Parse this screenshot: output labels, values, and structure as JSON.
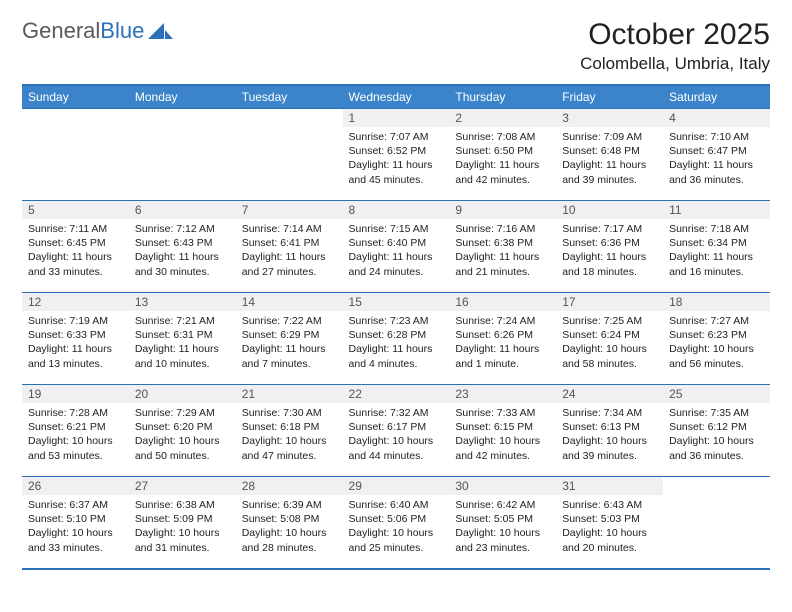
{
  "logo": {
    "text1": "General",
    "text2": "Blue"
  },
  "title": "October 2025",
  "location": "Colombella, Umbria, Italy",
  "colors": {
    "header_bg": "#3b84c9",
    "border": "#2d6fb8",
    "daynum_bg": "#eef0f2",
    "text": "#222222",
    "logo_gray": "#5a5a5a",
    "logo_blue": "#2d6fb8",
    "background": "#ffffff"
  },
  "weekdays": [
    "Sunday",
    "Monday",
    "Tuesday",
    "Wednesday",
    "Thursday",
    "Friday",
    "Saturday"
  ],
  "weeks": [
    [
      {
        "n": "",
        "sr": "",
        "ss": "",
        "dl": ""
      },
      {
        "n": "",
        "sr": "",
        "ss": "",
        "dl": ""
      },
      {
        "n": "",
        "sr": "",
        "ss": "",
        "dl": ""
      },
      {
        "n": "1",
        "sr": "Sunrise: 7:07 AM",
        "ss": "Sunset: 6:52 PM",
        "dl": "Daylight: 11 hours and 45 minutes."
      },
      {
        "n": "2",
        "sr": "Sunrise: 7:08 AM",
        "ss": "Sunset: 6:50 PM",
        "dl": "Daylight: 11 hours and 42 minutes."
      },
      {
        "n": "3",
        "sr": "Sunrise: 7:09 AM",
        "ss": "Sunset: 6:48 PM",
        "dl": "Daylight: 11 hours and 39 minutes."
      },
      {
        "n": "4",
        "sr": "Sunrise: 7:10 AM",
        "ss": "Sunset: 6:47 PM",
        "dl": "Daylight: 11 hours and 36 minutes."
      }
    ],
    [
      {
        "n": "5",
        "sr": "Sunrise: 7:11 AM",
        "ss": "Sunset: 6:45 PM",
        "dl": "Daylight: 11 hours and 33 minutes."
      },
      {
        "n": "6",
        "sr": "Sunrise: 7:12 AM",
        "ss": "Sunset: 6:43 PM",
        "dl": "Daylight: 11 hours and 30 minutes."
      },
      {
        "n": "7",
        "sr": "Sunrise: 7:14 AM",
        "ss": "Sunset: 6:41 PM",
        "dl": "Daylight: 11 hours and 27 minutes."
      },
      {
        "n": "8",
        "sr": "Sunrise: 7:15 AM",
        "ss": "Sunset: 6:40 PM",
        "dl": "Daylight: 11 hours and 24 minutes."
      },
      {
        "n": "9",
        "sr": "Sunrise: 7:16 AM",
        "ss": "Sunset: 6:38 PM",
        "dl": "Daylight: 11 hours and 21 minutes."
      },
      {
        "n": "10",
        "sr": "Sunrise: 7:17 AM",
        "ss": "Sunset: 6:36 PM",
        "dl": "Daylight: 11 hours and 18 minutes."
      },
      {
        "n": "11",
        "sr": "Sunrise: 7:18 AM",
        "ss": "Sunset: 6:34 PM",
        "dl": "Daylight: 11 hours and 16 minutes."
      }
    ],
    [
      {
        "n": "12",
        "sr": "Sunrise: 7:19 AM",
        "ss": "Sunset: 6:33 PM",
        "dl": "Daylight: 11 hours and 13 minutes."
      },
      {
        "n": "13",
        "sr": "Sunrise: 7:21 AM",
        "ss": "Sunset: 6:31 PM",
        "dl": "Daylight: 11 hours and 10 minutes."
      },
      {
        "n": "14",
        "sr": "Sunrise: 7:22 AM",
        "ss": "Sunset: 6:29 PM",
        "dl": "Daylight: 11 hours and 7 minutes."
      },
      {
        "n": "15",
        "sr": "Sunrise: 7:23 AM",
        "ss": "Sunset: 6:28 PM",
        "dl": "Daylight: 11 hours and 4 minutes."
      },
      {
        "n": "16",
        "sr": "Sunrise: 7:24 AM",
        "ss": "Sunset: 6:26 PM",
        "dl": "Daylight: 11 hours and 1 minute."
      },
      {
        "n": "17",
        "sr": "Sunrise: 7:25 AM",
        "ss": "Sunset: 6:24 PM",
        "dl": "Daylight: 10 hours and 58 minutes."
      },
      {
        "n": "18",
        "sr": "Sunrise: 7:27 AM",
        "ss": "Sunset: 6:23 PM",
        "dl": "Daylight: 10 hours and 56 minutes."
      }
    ],
    [
      {
        "n": "19",
        "sr": "Sunrise: 7:28 AM",
        "ss": "Sunset: 6:21 PM",
        "dl": "Daylight: 10 hours and 53 minutes."
      },
      {
        "n": "20",
        "sr": "Sunrise: 7:29 AM",
        "ss": "Sunset: 6:20 PM",
        "dl": "Daylight: 10 hours and 50 minutes."
      },
      {
        "n": "21",
        "sr": "Sunrise: 7:30 AM",
        "ss": "Sunset: 6:18 PM",
        "dl": "Daylight: 10 hours and 47 minutes."
      },
      {
        "n": "22",
        "sr": "Sunrise: 7:32 AM",
        "ss": "Sunset: 6:17 PM",
        "dl": "Daylight: 10 hours and 44 minutes."
      },
      {
        "n": "23",
        "sr": "Sunrise: 7:33 AM",
        "ss": "Sunset: 6:15 PM",
        "dl": "Daylight: 10 hours and 42 minutes."
      },
      {
        "n": "24",
        "sr": "Sunrise: 7:34 AM",
        "ss": "Sunset: 6:13 PM",
        "dl": "Daylight: 10 hours and 39 minutes."
      },
      {
        "n": "25",
        "sr": "Sunrise: 7:35 AM",
        "ss": "Sunset: 6:12 PM",
        "dl": "Daylight: 10 hours and 36 minutes."
      }
    ],
    [
      {
        "n": "26",
        "sr": "Sunrise: 6:37 AM",
        "ss": "Sunset: 5:10 PM",
        "dl": "Daylight: 10 hours and 33 minutes."
      },
      {
        "n": "27",
        "sr": "Sunrise: 6:38 AM",
        "ss": "Sunset: 5:09 PM",
        "dl": "Daylight: 10 hours and 31 minutes."
      },
      {
        "n": "28",
        "sr": "Sunrise: 6:39 AM",
        "ss": "Sunset: 5:08 PM",
        "dl": "Daylight: 10 hours and 28 minutes."
      },
      {
        "n": "29",
        "sr": "Sunrise: 6:40 AM",
        "ss": "Sunset: 5:06 PM",
        "dl": "Daylight: 10 hours and 25 minutes."
      },
      {
        "n": "30",
        "sr": "Sunrise: 6:42 AM",
        "ss": "Sunset: 5:05 PM",
        "dl": "Daylight: 10 hours and 23 minutes."
      },
      {
        "n": "31",
        "sr": "Sunrise: 6:43 AM",
        "ss": "Sunset: 5:03 PM",
        "dl": "Daylight: 10 hours and 20 minutes."
      },
      {
        "n": "",
        "sr": "",
        "ss": "",
        "dl": ""
      }
    ]
  ]
}
